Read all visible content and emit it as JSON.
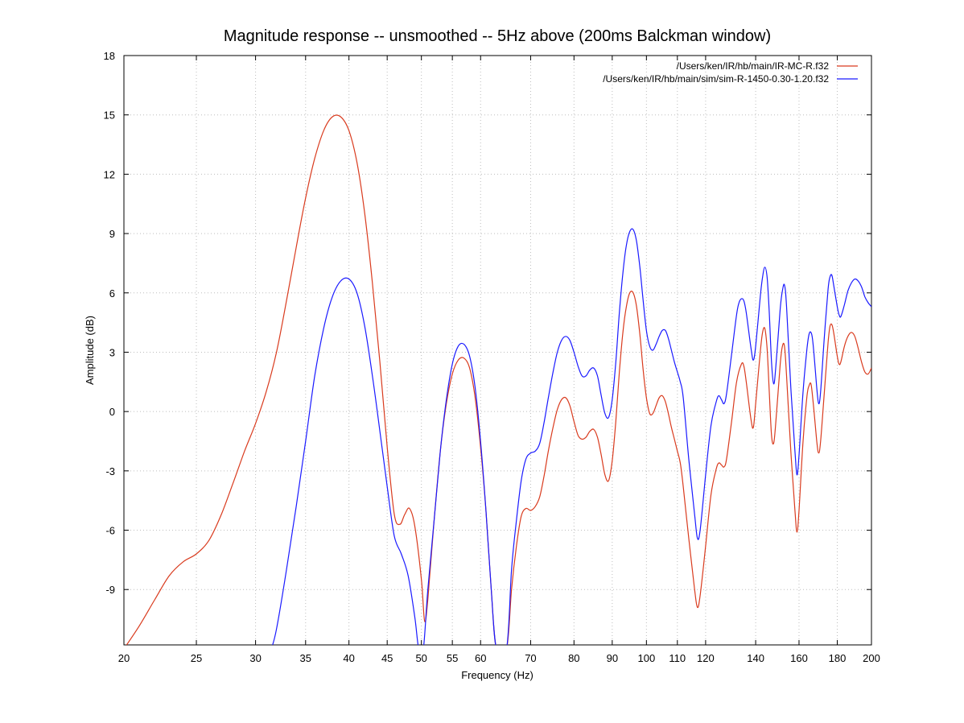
{
  "chart_data": {
    "type": "line",
    "title": "Magnitude response -- unsmoothed -- 5Hz above (200ms Balckman window)",
    "xlabel": "Frequency (Hz)",
    "ylabel": "Amplitude (dB)",
    "xscale": "log",
    "xlim": [
      20,
      200
    ],
    "ylim": [
      -11.8,
      18
    ],
    "x_ticks": [
      20,
      25,
      30,
      35,
      40,
      45,
      50,
      55,
      60,
      70,
      80,
      90,
      100,
      110,
      120,
      140,
      160,
      180,
      200
    ],
    "x_tick_labels": [
      "20",
      "25",
      "30",
      "35",
      "40",
      "45",
      "50",
      "55",
      "60",
      "70",
      "80",
      "90",
      "100",
      "110",
      "120",
      "140",
      "160",
      "180",
      "200"
    ],
    "y_ticks": [
      -9,
      -6,
      -3,
      0,
      3,
      6,
      9,
      12,
      15,
      18
    ],
    "y_tick_labels": [
      "-9",
      "-6",
      "-3",
      "0",
      "3",
      "6",
      "9",
      "12",
      "15",
      "18"
    ],
    "grid": true,
    "legend_position": "top-right",
    "series": [
      {
        "name": "/Users/ken/IR/hb/main/IR-MC-R.f32",
        "color": "#d93b1e",
        "points": [
          [
            20,
            -12.0
          ],
          [
            21,
            -10.8
          ],
          [
            22,
            -9.5
          ],
          [
            23,
            -8.3
          ],
          [
            24,
            -7.6
          ],
          [
            25,
            -7.2
          ],
          [
            26,
            -6.5
          ],
          [
            27,
            -5.2
          ],
          [
            28,
            -3.6
          ],
          [
            29,
            -2.0
          ],
          [
            30,
            -0.6
          ],
          [
            31,
            1.0
          ],
          [
            32,
            3.0
          ],
          [
            33,
            5.6
          ],
          [
            34,
            8.3
          ],
          [
            35,
            10.8
          ],
          [
            36,
            12.8
          ],
          [
            37,
            14.2
          ],
          [
            38,
            14.9
          ],
          [
            39,
            14.9
          ],
          [
            40,
            14.2
          ],
          [
            41,
            12.6
          ],
          [
            42,
            10.0
          ],
          [
            43,
            6.5
          ],
          [
            44,
            2.5
          ],
          [
            45,
            -1.8
          ],
          [
            46,
            -5.2
          ],
          [
            46.8,
            -5.7
          ],
          [
            47.5,
            -5.2
          ],
          [
            48.2,
            -4.9
          ],
          [
            49,
            -5.8
          ],
          [
            50,
            -8.5
          ],
          [
            50.5,
            -10.6
          ],
          [
            51,
            -9.5
          ],
          [
            52,
            -5.5
          ],
          [
            53,
            -2.0
          ],
          [
            54,
            0.4
          ],
          [
            55,
            1.9
          ],
          [
            56,
            2.6
          ],
          [
            57,
            2.7
          ],
          [
            58,
            2.2
          ],
          [
            59,
            0.7
          ],
          [
            60,
            -1.8
          ],
          [
            61,
            -5.0
          ],
          [
            62,
            -9.0
          ],
          [
            63,
            -12.0
          ],
          [
            65,
            -12.0
          ],
          [
            66,
            -9.0
          ],
          [
            67,
            -6.8
          ],
          [
            68,
            -5.3
          ],
          [
            69,
            -4.9
          ],
          [
            70,
            -5.0
          ],
          [
            71,
            -4.8
          ],
          [
            72,
            -4.3
          ],
          [
            73,
            -3.2
          ],
          [
            74,
            -1.9
          ],
          [
            75,
            -0.8
          ],
          [
            76,
            0.1
          ],
          [
            77,
            0.6
          ],
          [
            78,
            0.7
          ],
          [
            79,
            0.3
          ],
          [
            80,
            -0.5
          ],
          [
            81,
            -1.2
          ],
          [
            82,
            -1.4
          ],
          [
            83,
            -1.3
          ],
          [
            84,
            -1.0
          ],
          [
            85,
            -0.9
          ],
          [
            86,
            -1.3
          ],
          [
            87,
            -2.2
          ],
          [
            88,
            -3.2
          ],
          [
            89,
            -3.5
          ],
          [
            90,
            -2.5
          ],
          [
            91,
            -0.5
          ],
          [
            92,
            2.0
          ],
          [
            93,
            4.0
          ],
          [
            94,
            5.3
          ],
          [
            95,
            6.0
          ],
          [
            96,
            6.0
          ],
          [
            97,
            5.3
          ],
          [
            98,
            3.9
          ],
          [
            99,
            2.1
          ],
          [
            100,
            0.7
          ],
          [
            101,
            -0.1
          ],
          [
            102,
            -0.1
          ],
          [
            103,
            0.3
          ],
          [
            104,
            0.7
          ],
          [
            105,
            0.8
          ],
          [
            106,
            0.5
          ],
          [
            107,
            -0.1
          ],
          [
            108,
            -0.8
          ],
          [
            109,
            -1.4
          ],
          [
            110,
            -2.0
          ],
          [
            111,
            -2.6
          ],
          [
            112,
            -3.8
          ],
          [
            114,
            -6.5
          ],
          [
            116,
            -9.0
          ],
          [
            117,
            -9.9
          ],
          [
            118,
            -9.3
          ],
          [
            120,
            -6.8
          ],
          [
            122,
            -4.2
          ],
          [
            124,
            -2.9
          ],
          [
            125,
            -2.6
          ],
          [
            126,
            -2.7
          ],
          [
            127,
            -2.8
          ],
          [
            128,
            -2.4
          ],
          [
            130,
            -0.5
          ],
          [
            132,
            1.5
          ],
          [
            134,
            2.4
          ],
          [
            135,
            2.3
          ],
          [
            136,
            1.5
          ],
          [
            138,
            -0.4
          ],
          [
            139,
            -0.8
          ],
          [
            140,
            0.4
          ],
          [
            142,
            3.0
          ],
          [
            143,
            4.0
          ],
          [
            144,
            4.2
          ],
          [
            145,
            3.2
          ],
          [
            146,
            1.0
          ],
          [
            147,
            -1.2
          ],
          [
            148,
            -1.6
          ],
          [
            149,
            -0.5
          ],
          [
            151,
            2.4
          ],
          [
            152,
            3.3
          ],
          [
            153,
            3.3
          ],
          [
            154,
            1.8
          ],
          [
            156,
            -2.0
          ],
          [
            158,
            -5.0
          ],
          [
            159,
            -6.1
          ],
          [
            160,
            -5.0
          ],
          [
            162,
            -1.5
          ],
          [
            164,
            0.8
          ],
          [
            165,
            1.3
          ],
          [
            166,
            1.4
          ],
          [
            167,
            0.6
          ],
          [
            169,
            -1.5
          ],
          [
            170,
            -2.1
          ],
          [
            171,
            -1.5
          ],
          [
            173,
            1.0
          ],
          [
            175,
            3.5
          ],
          [
            176,
            4.3
          ],
          [
            177,
            4.4
          ],
          [
            178,
            4.0
          ],
          [
            180,
            2.8
          ],
          [
            181,
            2.4
          ],
          [
            182,
            2.5
          ],
          [
            184,
            3.3
          ],
          [
            186,
            3.8
          ],
          [
            188,
            4.0
          ],
          [
            190,
            3.8
          ],
          [
            192,
            3.2
          ],
          [
            194,
            2.5
          ],
          [
            196,
            2.0
          ],
          [
            198,
            1.9
          ],
          [
            200,
            2.2
          ]
        ]
      },
      {
        "name": "/Users/ken/IR/hb/main/sim/sim-R-1450-0.30-1.20.f32",
        "color": "#1a1aff",
        "points": [
          [
            31.5,
            -12.0
          ],
          [
            32,
            -11.0
          ],
          [
            33,
            -8.0
          ],
          [
            34,
            -4.8
          ],
          [
            35,
            -1.5
          ],
          [
            36,
            1.8
          ],
          [
            37,
            4.2
          ],
          [
            38,
            5.8
          ],
          [
            39,
            6.6
          ],
          [
            40,
            6.7
          ],
          [
            41,
            6.0
          ],
          [
            42,
            4.3
          ],
          [
            43,
            1.8
          ],
          [
            44,
            -1.0
          ],
          [
            45,
            -3.8
          ],
          [
            46,
            -6.3
          ],
          [
            47,
            -7.2
          ],
          [
            48,
            -8.3
          ],
          [
            49,
            -10.4
          ],
          [
            49.6,
            -12.0
          ],
          [
            50.3,
            -12.0
          ],
          [
            51,
            -9.0
          ],
          [
            52,
            -5.5
          ],
          [
            53,
            -2.0
          ],
          [
            54,
            0.6
          ],
          [
            55,
            2.4
          ],
          [
            56,
            3.3
          ],
          [
            57,
            3.4
          ],
          [
            58,
            2.8
          ],
          [
            59,
            1.2
          ],
          [
            60,
            -1.5
          ],
          [
            61,
            -5.0
          ],
          [
            62,
            -9.0
          ],
          [
            63,
            -12.0
          ],
          [
            65,
            -12.0
          ],
          [
            66,
            -8.0
          ],
          [
            67,
            -5.5
          ],
          [
            68,
            -3.5
          ],
          [
            69,
            -2.4
          ],
          [
            70,
            -2.1
          ],
          [
            71,
            -2.0
          ],
          [
            72,
            -1.6
          ],
          [
            73,
            -0.5
          ],
          [
            74,
            0.8
          ],
          [
            75,
            2.0
          ],
          [
            76,
            3.0
          ],
          [
            77,
            3.6
          ],
          [
            78,
            3.8
          ],
          [
            79,
            3.6
          ],
          [
            80,
            3.0
          ],
          [
            81,
            2.3
          ],
          [
            82,
            1.8
          ],
          [
            83,
            1.8
          ],
          [
            84,
            2.1
          ],
          [
            85,
            2.2
          ],
          [
            86,
            1.8
          ],
          [
            87,
            0.8
          ],
          [
            88,
            -0.1
          ],
          [
            89,
            -0.3
          ],
          [
            90,
            0.6
          ],
          [
            91,
            2.5
          ],
          [
            92,
            5.0
          ],
          [
            93,
            7.0
          ],
          [
            94,
            8.4
          ],
          [
            95,
            9.1
          ],
          [
            96,
            9.2
          ],
          [
            97,
            8.6
          ],
          [
            98,
            7.3
          ],
          [
            99,
            5.6
          ],
          [
            100,
            4.1
          ],
          [
            101,
            3.3
          ],
          [
            102,
            3.1
          ],
          [
            103,
            3.4
          ],
          [
            104,
            3.8
          ],
          [
            105,
            4.1
          ],
          [
            106,
            4.1
          ],
          [
            107,
            3.7
          ],
          [
            108,
            3.1
          ],
          [
            109,
            2.5
          ],
          [
            110,
            2.0
          ],
          [
            111,
            1.5
          ],
          [
            112,
            0.7
          ],
          [
            114,
            -2.5
          ],
          [
            116,
            -5.2
          ],
          [
            117,
            -6.4
          ],
          [
            118,
            -6.0
          ],
          [
            120,
            -3.2
          ],
          [
            122,
            -0.7
          ],
          [
            124,
            0.5
          ],
          [
            125,
            0.8
          ],
          [
            126,
            0.6
          ],
          [
            127,
            0.4
          ],
          [
            128,
            0.9
          ],
          [
            130,
            2.9
          ],
          [
            132,
            4.9
          ],
          [
            133,
            5.5
          ],
          [
            134,
            5.7
          ],
          [
            135,
            5.6
          ],
          [
            136,
            5.0
          ],
          [
            138,
            3.2
          ],
          [
            139,
            2.6
          ],
          [
            140,
            3.3
          ],
          [
            142,
            5.8
          ],
          [
            143,
            6.8
          ],
          [
            144,
            7.3
          ],
          [
            145,
            6.8
          ],
          [
            146,
            5.0
          ],
          [
            147,
            2.5
          ],
          [
            148,
            1.4
          ],
          [
            149,
            2.3
          ],
          [
            151,
            5.2
          ],
          [
            152,
            6.1
          ],
          [
            153,
            6.4
          ],
          [
            154,
            5.3
          ],
          [
            156,
            1.2
          ],
          [
            158,
            -2.0
          ],
          [
            159,
            -3.2
          ],
          [
            160,
            -2.2
          ],
          [
            162,
            1.0
          ],
          [
            164,
            3.2
          ],
          [
            165,
            3.9
          ],
          [
            166,
            4.0
          ],
          [
            167,
            3.5
          ],
          [
            169,
            1.2
          ],
          [
            170,
            0.4
          ],
          [
            171,
            1.0
          ],
          [
            173,
            3.8
          ],
          [
            175,
            6.2
          ],
          [
            176,
            6.8
          ],
          [
            177,
            6.9
          ],
          [
            178,
            6.4
          ],
          [
            180,
            5.3
          ],
          [
            181,
            4.9
          ],
          [
            182,
            4.8
          ],
          [
            184,
            5.4
          ],
          [
            186,
            6.1
          ],
          [
            188,
            6.5
          ],
          [
            190,
            6.7
          ],
          [
            192,
            6.6
          ],
          [
            194,
            6.3
          ],
          [
            196,
            5.8
          ],
          [
            198,
            5.5
          ],
          [
            200,
            5.3
          ]
        ]
      }
    ]
  }
}
